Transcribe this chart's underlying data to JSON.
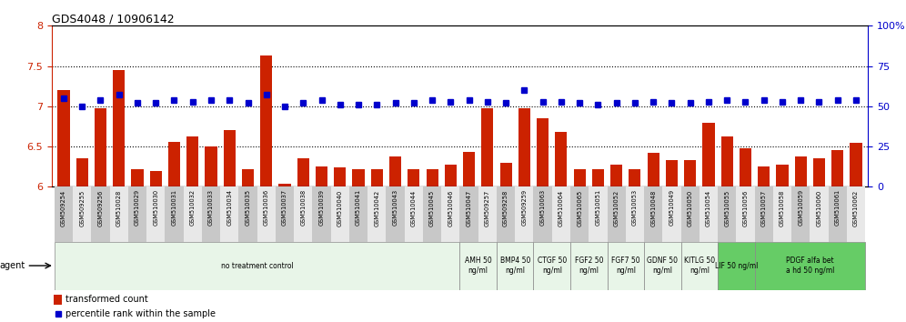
{
  "title": "GDS4048 / 10906142",
  "samples": [
    "GSM509254",
    "GSM509255",
    "GSM509256",
    "GSM510028",
    "GSM510029",
    "GSM510030",
    "GSM510031",
    "GSM510032",
    "GSM510033",
    "GSM510034",
    "GSM510035",
    "GSM510036",
    "GSM510037",
    "GSM510038",
    "GSM510039",
    "GSM510040",
    "GSM510041",
    "GSM510042",
    "GSM510043",
    "GSM510044",
    "GSM510045",
    "GSM510046",
    "GSM510047",
    "GSM509257",
    "GSM509258",
    "GSM509259",
    "GSM510063",
    "GSM510064",
    "GSM510065",
    "GSM510051",
    "GSM510052",
    "GSM510053",
    "GSM510048",
    "GSM510049",
    "GSM510050",
    "GSM510054",
    "GSM510055",
    "GSM510056",
    "GSM510057",
    "GSM510058",
    "GSM510059",
    "GSM510060",
    "GSM510061",
    "GSM510062"
  ],
  "bar_values": [
    7.2,
    6.35,
    6.97,
    7.45,
    6.22,
    6.2,
    6.56,
    6.62,
    6.5,
    6.7,
    6.22,
    7.63,
    6.04,
    6.35,
    6.25,
    6.24,
    6.22,
    6.22,
    6.38,
    6.22,
    6.22,
    6.28,
    6.43,
    6.97,
    6.3,
    6.97,
    6.85,
    6.68,
    6.22,
    6.22,
    6.28,
    6.22,
    6.42,
    6.33,
    6.33,
    6.79,
    6.62,
    6.48,
    6.25,
    6.28,
    6.38,
    6.35,
    6.45,
    6.55
  ],
  "dot_values": [
    55,
    50,
    54,
    57,
    52,
    52,
    54,
    53,
    54,
    54,
    52,
    57,
    50,
    52,
    54,
    51,
    51,
    51,
    52,
    52,
    54,
    53,
    54,
    53,
    52,
    60,
    53,
    53,
    52,
    51,
    52,
    52,
    53,
    52,
    52,
    53,
    54,
    53,
    54,
    53,
    54,
    53,
    54,
    54
  ],
  "bar_color": "#cc2200",
  "dot_color": "#0000cc",
  "ylim_left": [
    6.0,
    8.0
  ],
  "ylim_right": [
    0,
    100
  ],
  "yticks_left": [
    6.0,
    6.5,
    7.0,
    7.5,
    8.0
  ],
  "yticks_right": [
    0,
    25,
    50,
    75,
    100
  ],
  "hlines": [
    6.5,
    7.0,
    7.5
  ],
  "agent_groups": [
    {
      "label": "no treatment control",
      "start": 0,
      "end": 22,
      "color": "#e8f5e8"
    },
    {
      "label": "AMH 50\nng/ml",
      "start": 22,
      "end": 24,
      "color": "#e8f5e8"
    },
    {
      "label": "BMP4 50\nng/ml",
      "start": 24,
      "end": 26,
      "color": "#e8f5e8"
    },
    {
      "label": "CTGF 50\nng/ml",
      "start": 26,
      "end": 28,
      "color": "#e8f5e8"
    },
    {
      "label": "FGF2 50\nng/ml",
      "start": 28,
      "end": 30,
      "color": "#e8f5e8"
    },
    {
      "label": "FGF7 50\nng/ml",
      "start": 30,
      "end": 32,
      "color": "#e8f5e8"
    },
    {
      "label": "GDNF 50\nng/ml",
      "start": 32,
      "end": 34,
      "color": "#e8f5e8"
    },
    {
      "label": "KITLG 50\nng/ml",
      "start": 34,
      "end": 36,
      "color": "#e8f5e8"
    },
    {
      "label": "LIF 50 ng/ml",
      "start": 36,
      "end": 38,
      "color": "#66cc66"
    },
    {
      "label": "PDGF alfa bet\na hd 50 ng/ml",
      "start": 38,
      "end": 44,
      "color": "#66cc66"
    }
  ],
  "legend_bar_label": "transformed count",
  "legend_dot_label": "percentile rank within the sample",
  "agent_label": "agent"
}
